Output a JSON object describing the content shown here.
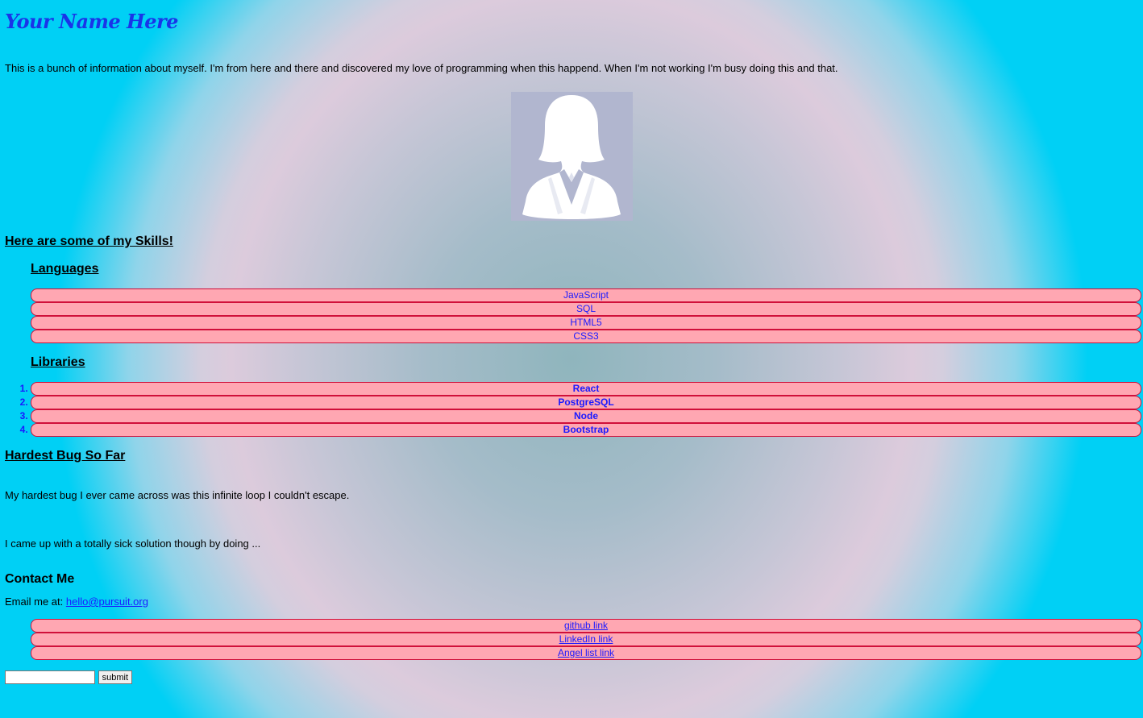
{
  "header": {
    "name": "Your Name Here",
    "about": "This is a bunch of information about myself. I'm from here and there and discovered my love of programming when this happend. When I'm not working I'm busy doing this and that."
  },
  "avatar": {
    "icon": "user-silhouette-icon",
    "background": "#b1b6cf"
  },
  "skills": {
    "heading": "Here are some of my Skills!",
    "languages": {
      "heading": "Languages",
      "items": [
        "JavaScript",
        "SQL",
        "HTML5",
        "CSS3"
      ]
    },
    "libraries": {
      "heading": "Libraries",
      "items": [
        "React",
        "PostgreSQL",
        "Node",
        "Bootstrap"
      ]
    }
  },
  "bug": {
    "heading": "Hardest Bug So Far",
    "paragraph1": "My hardest bug I ever came across was this infinite loop I couldn't escape.",
    "paragraph2": "I came up with a totally sick solution though by doing ..."
  },
  "contact": {
    "heading": "Contact Me",
    "email_label": "Email me at:",
    "email": "hello@pursuit.org",
    "links": [
      "github link",
      "LinkedIn link",
      "Angel list link"
    ],
    "submit_label": "submit",
    "input_value": ""
  },
  "colors": {
    "link": "#1a1aff",
    "pill_fill": "#ffa7b2",
    "pill_border": "#d0103a",
    "title": "#1a34e8"
  }
}
